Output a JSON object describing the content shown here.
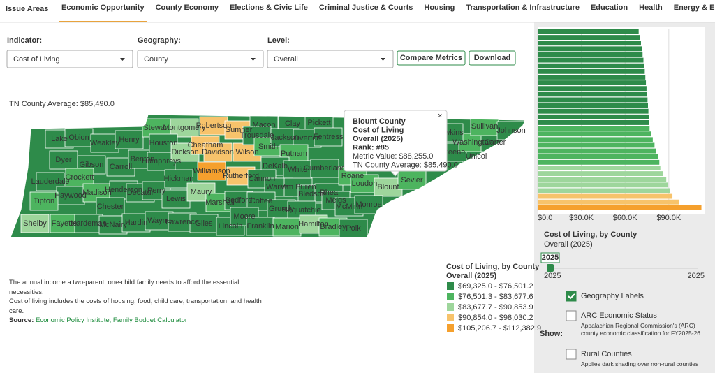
{
  "header": {
    "title": "Issue Areas",
    "tabs": [
      {
        "label": "Economic Opportunity",
        "color": "#e8a33d",
        "active": true
      },
      {
        "label": "County Economy",
        "color": "#3ea6d8"
      },
      {
        "label": "Elections & Civic Life",
        "color": "#1a6f8a"
      },
      {
        "label": "Criminal Justice & Courts",
        "color": "#7b2d7f"
      },
      {
        "label": "Housing",
        "color": "#4a5a1e"
      },
      {
        "label": "Transportation & Infrastructure",
        "color": "#5aa02c"
      },
      {
        "label": "Education",
        "color": "#2e5fa8"
      },
      {
        "label": "Health",
        "color": "#d9342b"
      },
      {
        "label": "Energy & Environment",
        "color": "#e66b2a"
      }
    ]
  },
  "controls": {
    "indicator_label": "Indicator:",
    "indicator": "Cost of Living",
    "geography_label": "Geography:",
    "geography": "County",
    "level_label": "Level:",
    "level": "Overall",
    "compare": "Compare Metrics",
    "download": "Download"
  },
  "map": {
    "average": "TN County Average: $85,490.0",
    "counties": [
      {
        "name": "Lake",
        "color": "#2e8b4a"
      },
      {
        "name": "Obion",
        "color": "#2e8b4a"
      },
      {
        "name": "Weakley",
        "color": "#2e8b4a"
      },
      {
        "name": "Henry",
        "color": "#2e8b4a"
      },
      {
        "name": "Stewart",
        "color": "#4db45f"
      },
      {
        "name": "Montgomery",
        "color": "#9ed69c"
      },
      {
        "name": "Robertson",
        "color": "#f7c36b"
      },
      {
        "name": "Sumner",
        "color": "#f7c36b"
      },
      {
        "name": "Macon",
        "color": "#2e8b4a"
      },
      {
        "name": "Clay",
        "color": "#2e8b4a"
      },
      {
        "name": "Pickett",
        "color": "#2e8b4a"
      },
      {
        "name": "Dyer",
        "color": "#2e8b4a"
      },
      {
        "name": "Gibson",
        "color": "#2e8b4a"
      },
      {
        "name": "Carroll",
        "color": "#2e8b4a"
      },
      {
        "name": "Benton",
        "color": "#2e8b4a"
      },
      {
        "name": "Humphreys",
        "color": "#2e8b4a"
      },
      {
        "name": "Houston",
        "color": "#2e8b4a"
      },
      {
        "name": "Dickson",
        "color": "#9ed69c"
      },
      {
        "name": "Cheatham",
        "color": "#f7c36b"
      },
      {
        "name": "Davidson",
        "color": "#f7c36b"
      },
      {
        "name": "Wilson",
        "color": "#f7c36b"
      },
      {
        "name": "Trousdale",
        "color": "#2e8b4a"
      },
      {
        "name": "Smith",
        "color": "#4db45f"
      },
      {
        "name": "Jackson",
        "color": "#2e8b4a"
      },
      {
        "name": "Overton",
        "color": "#2e8b4a"
      },
      {
        "name": "Fentress",
        "color": "#2e8b4a"
      },
      {
        "name": "Putnam",
        "color": "#4db45f"
      },
      {
        "name": "DeKalb",
        "color": "#2e8b4a"
      },
      {
        "name": "White",
        "color": "#2e8b4a"
      },
      {
        "name": "Cumberland",
        "color": "#2e8b4a"
      },
      {
        "name": "Lauderdale",
        "color": "#2e8b4a"
      },
      {
        "name": "Crockett",
        "color": "#4db45f"
      },
      {
        "name": "Haywood",
        "color": "#2e8b4a"
      },
      {
        "name": "Madison",
        "color": "#4db45f"
      },
      {
        "name": "Henderson",
        "color": "#2e8b4a"
      },
      {
        "name": "Decatur",
        "color": "#2e8b4a"
      },
      {
        "name": "Perry",
        "color": "#2e8b4a"
      },
      {
        "name": "Hickman",
        "color": "#2e8b4a"
      },
      {
        "name": "Williamson",
        "color": "#f5a02d"
      },
      {
        "name": "Rutherford",
        "color": "#f7c36b"
      },
      {
        "name": "Cannon",
        "color": "#2e8b4a"
      },
      {
        "name": "Warren",
        "color": "#2e8b4a"
      },
      {
        "name": "Van Buren",
        "color": "#2e8b4a"
      },
      {
        "name": "Bledsoe",
        "color": "#2e8b4a"
      },
      {
        "name": "Rhea",
        "color": "#2e8b4a"
      },
      {
        "name": "Roane",
        "color": "#4db45f"
      },
      {
        "name": "Loudon",
        "color": "#4db45f"
      },
      {
        "name": "Blount",
        "color": "#9ed69c"
      },
      {
        "name": "Sevier",
        "color": "#4db45f"
      },
      {
        "name": "Tipton",
        "color": "#4db45f"
      },
      {
        "name": "Chester",
        "color": "#2e8b4a"
      },
      {
        "name": "Lewis",
        "color": "#2e8b4a"
      },
      {
        "name": "Maury",
        "color": "#9ed69c"
      },
      {
        "name": "Marshall",
        "color": "#4db45f"
      },
      {
        "name": "Bedford",
        "color": "#2e8b4a"
      },
      {
        "name": "Coffee",
        "color": "#2e8b4a"
      },
      {
        "name": "Grundy",
        "color": "#2e8b4a"
      },
      {
        "name": "Sequatchie",
        "color": "#2e8b4a"
      },
      {
        "name": "Meigs",
        "color": "#2e8b4a"
      },
      {
        "name": "McMinn",
        "color": "#2e8b4a"
      },
      {
        "name": "Monroe",
        "color": "#2e8b4a"
      },
      {
        "name": "Shelby",
        "color": "#9ed69c"
      },
      {
        "name": "Fayette",
        "color": "#4db45f"
      },
      {
        "name": "Hardeman",
        "color": "#2e8b4a"
      },
      {
        "name": "McNairy",
        "color": "#2e8b4a"
      },
      {
        "name": "Hardin",
        "color": "#2e8b4a"
      },
      {
        "name": "Wayne",
        "color": "#2e8b4a"
      },
      {
        "name": "Lawrence",
        "color": "#2e8b4a"
      },
      {
        "name": "Giles",
        "color": "#2e8b4a"
      },
      {
        "name": "Lincoln",
        "color": "#2e8b4a"
      },
      {
        "name": "Moore",
        "color": "#2e8b4a"
      },
      {
        "name": "Franklin",
        "color": "#2e8b4a"
      },
      {
        "name": "Marion",
        "color": "#4db45f"
      },
      {
        "name": "Hamilton",
        "color": "#9ed69c"
      },
      {
        "name": "Bradley",
        "color": "#4db45f"
      },
      {
        "name": "Polk",
        "color": "#2e8b4a"
      },
      {
        "name": "Unicoi",
        "color": "#2e8b4a"
      },
      {
        "name": "Greene",
        "color": "#2e8b4a"
      },
      {
        "name": "Washington",
        "color": "#4db45f"
      },
      {
        "name": "Carter",
        "color": "#2e8b4a"
      },
      {
        "name": "Sullivan",
        "color": "#4db45f"
      },
      {
        "name": "Johnson",
        "color": "#2e8b4a"
      },
      {
        "name": "Hawkins",
        "color": "#2e8b4a"
      }
    ]
  },
  "tooltip": {
    "close": "×",
    "lines": [
      "Blount County",
      "Cost of Living",
      "Overall (2025)",
      "Rank: #85",
      "Metric Value: $88,255.0",
      "TN County Average: $85,490.0"
    ]
  },
  "legend": {
    "title": [
      "Cost of Living, by County",
      "Overall (2025)"
    ],
    "items": [
      {
        "label": "$69,325.0 - $76,501.2",
        "color": "#2e8b4a"
      },
      {
        "label": "$76,501.3 - $83,677.6",
        "color": "#4db45f"
      },
      {
        "label": "$83,677.7 - $90,853.9",
        "color": "#9ed69c"
      },
      {
        "label": "$90,854.0 - $98,030.2",
        "color": "#f7c36b"
      },
      {
        "label": "$105,206.7 - $112,382.9",
        "color": "#f5a02d"
      }
    ]
  },
  "description": {
    "paragraphs": [
      "The annual income a two-parent, one-child family needs to afford the essential necessities.",
      "Cost of living includes the costs of housing, food, child care, transportation, and health care."
    ],
    "source_label": "Source:",
    "source": "Economic Policy Institute, Family Budget Calculator"
  },
  "chart_data": {
    "type": "bar",
    "orientation": "horizontal",
    "title": "Cost of Living, by County",
    "subtitle": "Overall (2025)",
    "values": [
      69325,
      70100,
      70900,
      71500,
      72000,
      72600,
      73100,
      73500,
      73900,
      74300,
      74700,
      75100,
      75400,
      75700,
      76000,
      76300,
      76500,
      76800,
      77900,
      79000,
      80200,
      81400,
      82600,
      83500,
      84200,
      86000,
      88255,
      89500,
      90700,
      92500,
      96800,
      112382.9
    ],
    "colors": [
      "#2e8b4a",
      "#2e8b4a",
      "#2e8b4a",
      "#2e8b4a",
      "#2e8b4a",
      "#2e8b4a",
      "#2e8b4a",
      "#2e8b4a",
      "#2e8b4a",
      "#2e8b4a",
      "#2e8b4a",
      "#2e8b4a",
      "#2e8b4a",
      "#2e8b4a",
      "#2e8b4a",
      "#2e8b4a",
      "#2e8b4a",
      "#4db45f",
      "#4db45f",
      "#4db45f",
      "#4db45f",
      "#4db45f",
      "#4db45f",
      "#4db45f",
      "#9ed69c",
      "#9ed69c",
      "#9ed69c",
      "#9ed69c",
      "#9ed69c",
      "#f7c36b",
      "#f7c36b",
      "#f5a02d"
    ],
    "xlim": [
      0,
      115000
    ],
    "xticks": [
      {
        "value": 0,
        "label": "$0.0"
      },
      {
        "value": 30000,
        "label": "$30.0K"
      },
      {
        "value": 60000,
        "label": "$60.0K"
      },
      {
        "value": 90000,
        "label": "$90.0K"
      }
    ]
  },
  "timeline": {
    "selected": "2025",
    "start": "2025",
    "end": "2025"
  },
  "options": {
    "show_label": "Show:",
    "items": [
      {
        "label": "Geography Labels",
        "checked": true
      },
      {
        "label": "ARC Economic Status",
        "checked": false,
        "description": "Appalachian Regional Commission's (ARC) county economic classification for FY2025-26"
      },
      {
        "label": "Rural Counties",
        "checked": false,
        "description": "Applies dark shading over non-rural counties"
      }
    ]
  }
}
